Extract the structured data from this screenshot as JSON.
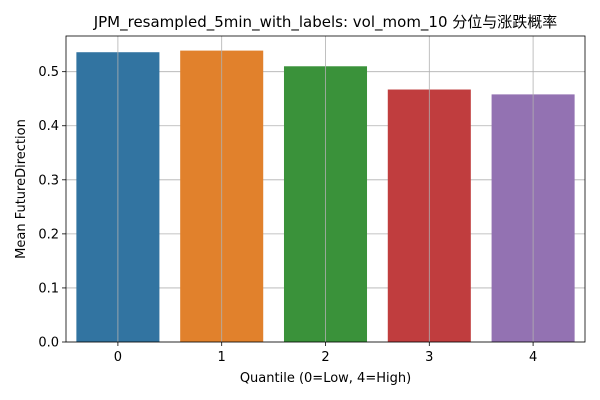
{
  "chart_data": {
    "type": "bar",
    "title": "JPM_resampled_5min_with_labels: vol_mom_10 分位与涨跌概率",
    "xlabel": "Quantile (0=Low, 4=High)",
    "ylabel": "Mean FutureDirection",
    "categories": [
      "0",
      "1",
      "2",
      "3",
      "4"
    ],
    "values": [
      0.536,
      0.539,
      0.51,
      0.467,
      0.458
    ],
    "colors": [
      "#3274a1",
      "#e1812c",
      "#3a923a",
      "#c03d3e",
      "#9372b2"
    ],
    "ylim": [
      0,
      0.566
    ],
    "yticks": [
      "0.0",
      "0.1",
      "0.2",
      "0.3",
      "0.4",
      "0.5"
    ],
    "grid": true
  }
}
